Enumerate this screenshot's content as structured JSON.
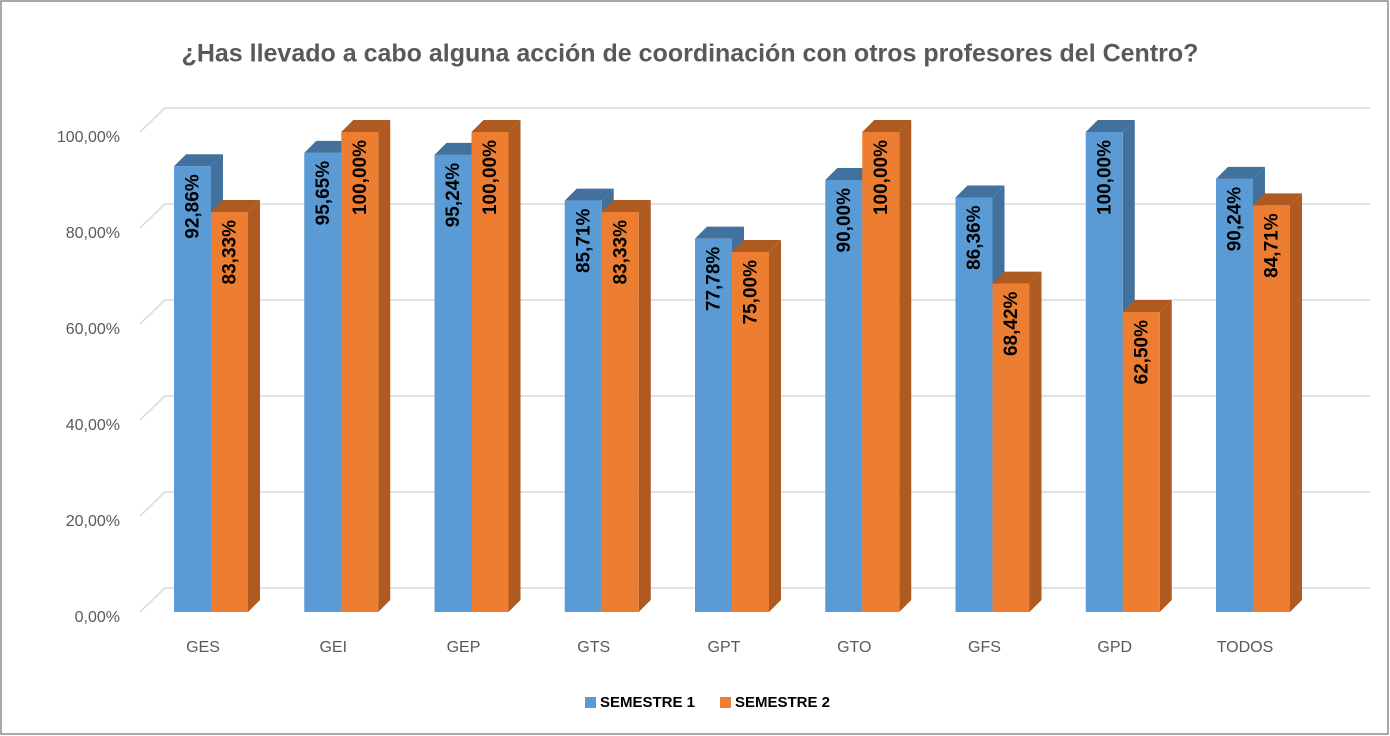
{
  "chart_data": {
    "type": "bar3d",
    "title": "¿Has llevado a cabo alguna acción de coordinación con otros profesores del Centro?",
    "categories": [
      "GES",
      "GEI",
      "GEP",
      "GTS",
      "GPT",
      "GTO",
      "GFS",
      "GPD",
      "TODOS"
    ],
    "series": [
      {
        "name": "SEMESTRE 1",
        "color": "#5b9bd5",
        "side_color": "#41719c",
        "values": [
          92.86,
          95.65,
          95.24,
          85.71,
          77.78,
          90,
          86.36,
          100,
          90.24
        ],
        "value_labels": [
          "92,86%",
          "95,65%",
          "95,24%",
          "85,71%",
          "77,78%",
          "90,00%",
          "86,36%",
          "100,00%",
          "90,24%"
        ]
      },
      {
        "name": "SEMESTRE 2",
        "color": "#ed7d31",
        "side_color": "#ae5a21",
        "values": [
          83.33,
          100,
          100,
          83.33,
          75,
          100,
          68.42,
          62.5,
          84.71
        ],
        "value_labels": [
          "83,33%",
          "100,00%",
          "100,00%",
          "83,33%",
          "75,00%",
          "100,00%",
          "68,42%",
          "62,50%",
          "84,71%"
        ]
      }
    ],
    "ylim": [
      0,
      100
    ],
    "yticks": [
      {
        "value": 0,
        "label": "0,00%"
      },
      {
        "value": 20,
        "label": "20,00%"
      },
      {
        "value": 40,
        "label": "40,00%"
      },
      {
        "value": 60,
        "label": "60,00%"
      },
      {
        "value": 80,
        "label": "80,00%"
      },
      {
        "value": 100,
        "label": "100,00%"
      }
    ],
    "grid": true,
    "legend": "bottom"
  }
}
